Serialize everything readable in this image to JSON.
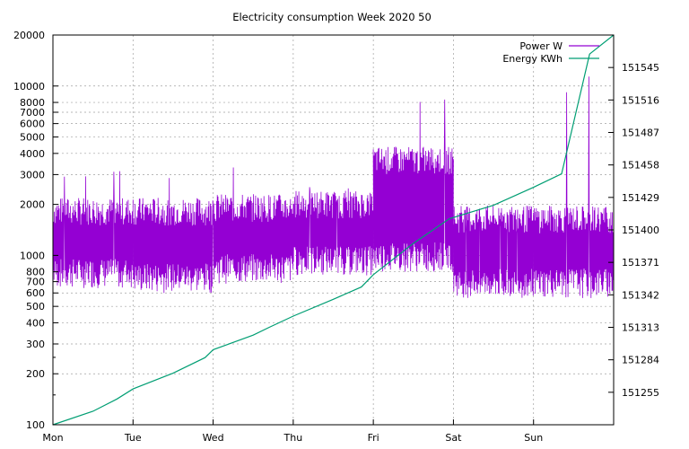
{
  "chart_data": {
    "type": "line",
    "title": "Electricity consumption Week 2020 50",
    "x_axis": {
      "categories": [
        "Mon",
        "Tue",
        "Wed",
        "Thu",
        "Fri",
        "Sat",
        "Sun"
      ],
      "range_days": [
        0,
        7
      ]
    },
    "y_left": {
      "scale": "log",
      "range": [
        100,
        20000
      ],
      "ticks": [
        "100",
        "200",
        "300",
        "400",
        "500",
        "600",
        "700",
        "800",
        "1000",
        "2000",
        "3000",
        "4000",
        "5000",
        "6000",
        "7000",
        "8000",
        "10000",
        "20000"
      ]
    },
    "y_right": {
      "scale": "linear",
      "range": [
        151226,
        151574
      ],
      "ticks": [
        "151255",
        "151284",
        "151313",
        "151342",
        "151371",
        "151400",
        "151429",
        "151458",
        "151487",
        "151516",
        "151545"
      ]
    },
    "grid": true,
    "legend_position": "top-right",
    "series": [
      {
        "name": "Power W",
        "axis": "left",
        "color": "#9400d3",
        "segments": [
          {
            "label": "Mon",
            "low": 800,
            "high": 2000,
            "spike": 3500
          },
          {
            "label": "Tue",
            "low": 750,
            "high": 2000,
            "spike": 3000
          },
          {
            "label": "Wed",
            "low": 850,
            "high": 2100,
            "spike": 4500
          },
          {
            "label": "Thu",
            "low": 950,
            "high": 2200,
            "spike": 3000
          },
          {
            "label": "Fri",
            "low": 1000,
            "high": 4000,
            "spike": 9000
          },
          {
            "label": "Sat",
            "low": 700,
            "high": 1800,
            "spike": 2000
          },
          {
            "label": "Sun",
            "low": 700,
            "high": 1800,
            "spike": 12000
          }
        ]
      },
      {
        "name": "Energy KWh",
        "axis": "right",
        "color": "#009e73",
        "x": [
          0,
          0.5,
          0.8,
          1.0,
          1.5,
          1.9,
          2.0,
          2.5,
          2.7,
          3.0,
          3.5,
          3.85,
          4.0,
          4.5,
          4.95,
          5.5,
          6.0,
          6.35,
          6.7,
          7.0
        ],
        "y": [
          151226,
          151238,
          151249,
          151258,
          151272,
          151286,
          151293,
          151306,
          151313,
          151323,
          151338,
          151349,
          151360,
          151388,
          151410,
          151422,
          151438,
          151450,
          151557,
          151574
        ]
      }
    ]
  }
}
